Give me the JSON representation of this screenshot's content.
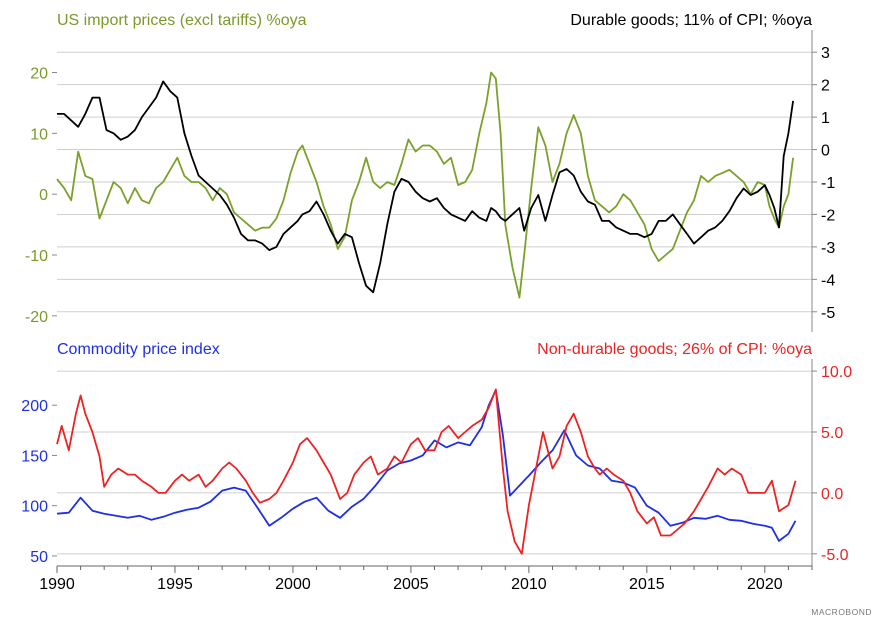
{
  "chart_data": [
    {
      "type": "line",
      "title_left": "US import prices (excl tariffs) %oya",
      "title_right": "Durable goods; 11% of CPI; %oya",
      "left_axis": {
        "ylim": [
          -22,
          26
        ],
        "ticks": [
          20,
          10,
          0,
          -10,
          -20
        ],
        "color": "#7a9a2a"
      },
      "right_axis": {
        "ylim": [
          -5.5,
          3.5
        ],
        "ticks": [
          3,
          2,
          1,
          0,
          -1,
          -2,
          -3,
          -4,
          -5
        ],
        "color": "#000000"
      },
      "grid": true,
      "series": [
        {
          "axis": "left",
          "color": "#7aa12a",
          "x": [
            1990.0,
            1990.3,
            1990.6,
            1990.9,
            1991.2,
            1991.5,
            1991.8,
            1992.1,
            1992.4,
            1992.7,
            1993.0,
            1993.3,
            1993.6,
            1993.9,
            1994.2,
            1994.5,
            1994.8,
            1995.1,
            1995.4,
            1995.7,
            1996.0,
            1996.3,
            1996.6,
            1996.9,
            1997.2,
            1997.5,
            1997.8,
            1998.1,
            1998.4,
            1998.7,
            1999.0,
            1999.3,
            1999.6,
            1999.9,
            2000.2,
            2000.4,
            2000.7,
            2001.0,
            2001.3,
            2001.6,
            2001.9,
            2002.2,
            2002.5,
            2002.8,
            2003.1,
            2003.4,
            2003.7,
            2004.0,
            2004.3,
            2004.6,
            2004.9,
            2005.2,
            2005.5,
            2005.8,
            2006.1,
            2006.4,
            2006.7,
            2007.0,
            2007.3,
            2007.6,
            2007.9,
            2008.2,
            2008.4,
            2008.6,
            2008.8,
            2009.0,
            2009.3,
            2009.6,
            2009.8,
            2010.1,
            2010.4,
            2010.7,
            2011.0,
            2011.3,
            2011.6,
            2011.9,
            2012.2,
            2012.5,
            2012.8,
            2013.1,
            2013.4,
            2013.7,
            2014.0,
            2014.3,
            2014.6,
            2014.9,
            2015.2,
            2015.5,
            2015.8,
            2016.1,
            2016.4,
            2016.7,
            2017.0,
            2017.3,
            2017.6,
            2017.9,
            2018.2,
            2018.5,
            2018.8,
            2019.1,
            2019.4,
            2019.7,
            2020.0,
            2020.2,
            2020.4,
            2020.6,
            2020.8,
            2021.0,
            2021.2
          ],
          "y": [
            2.5,
            1.0,
            -1.0,
            7.0,
            3.0,
            2.5,
            -4.0,
            -1.0,
            2.0,
            1.0,
            -1.5,
            1.0,
            -1.0,
            -1.5,
            1.0,
            2.0,
            4.0,
            6.0,
            3.0,
            2.0,
            2.0,
            1.0,
            -1.0,
            1.0,
            0.0,
            -3.0,
            -4.0,
            -5.0,
            -6.0,
            -5.5,
            -5.5,
            -4.0,
            -1.0,
            3.5,
            7.0,
            8.0,
            5.0,
            2.0,
            -2.0,
            -5.0,
            -9.0,
            -7.0,
            -1.0,
            2.0,
            6.0,
            2.0,
            1.0,
            2.0,
            1.5,
            5.0,
            9.0,
            7.0,
            8.0,
            8.0,
            7.0,
            5.0,
            6.0,
            1.5,
            2.0,
            4.0,
            10.0,
            15.0,
            20.0,
            19.0,
            10.0,
            -5.0,
            -12.0,
            -17.0,
            -10.0,
            1.0,
            11.0,
            8.0,
            2.0,
            5.0,
            10.0,
            13.0,
            10.0,
            3.0,
            -1.0,
            -2.0,
            -3.0,
            -2.0,
            0.0,
            -1.0,
            -3.0,
            -5.0,
            -9.0,
            -11.0,
            -10.0,
            -9.0,
            -6.0,
            -3.0,
            -1.0,
            3.0,
            2.0,
            3.0,
            3.5,
            4.0,
            3.0,
            2.0,
            0.0,
            2.0,
            1.5,
            -2.0,
            -4.0,
            -5.5,
            -2.0,
            0.0,
            6.0
          ]
        },
        {
          "axis": "right",
          "color": "#000000",
          "x": [
            1990.0,
            1990.3,
            1990.6,
            1990.9,
            1991.2,
            1991.5,
            1991.8,
            1992.1,
            1992.4,
            1992.7,
            1993.0,
            1993.3,
            1993.6,
            1993.9,
            1994.2,
            1994.5,
            1994.8,
            1995.1,
            1995.4,
            1995.7,
            1996.0,
            1996.3,
            1996.6,
            1996.9,
            1997.2,
            1997.5,
            1997.8,
            1998.1,
            1998.4,
            1998.7,
            1999.0,
            1999.3,
            1999.6,
            1999.9,
            2000.2,
            2000.4,
            2000.7,
            2001.0,
            2001.3,
            2001.6,
            2001.9,
            2002.2,
            2002.5,
            2002.8,
            2003.1,
            2003.4,
            2003.7,
            2004.0,
            2004.3,
            2004.6,
            2004.9,
            2005.2,
            2005.5,
            2005.8,
            2006.1,
            2006.4,
            2006.7,
            2007.0,
            2007.3,
            2007.6,
            2007.9,
            2008.2,
            2008.4,
            2008.6,
            2008.8,
            2009.0,
            2009.3,
            2009.6,
            2009.8,
            2010.1,
            2010.4,
            2010.7,
            2011.0,
            2011.3,
            2011.6,
            2011.9,
            2012.2,
            2012.5,
            2012.8,
            2013.1,
            2013.4,
            2013.7,
            2014.0,
            2014.3,
            2014.6,
            2014.9,
            2015.2,
            2015.5,
            2015.8,
            2016.1,
            2016.4,
            2016.7,
            2017.0,
            2017.3,
            2017.6,
            2017.9,
            2018.2,
            2018.5,
            2018.8,
            2019.1,
            2019.4,
            2019.7,
            2020.0,
            2020.2,
            2020.4,
            2020.6,
            2020.8,
            2021.0,
            2021.2
          ],
          "y": [
            1.1,
            1.1,
            0.9,
            0.7,
            1.1,
            1.6,
            1.6,
            0.6,
            0.5,
            0.3,
            0.4,
            0.6,
            1.0,
            1.3,
            1.6,
            2.1,
            1.8,
            1.6,
            0.5,
            -0.2,
            -0.8,
            -1.0,
            -1.2,
            -1.4,
            -1.7,
            -2.1,
            -2.6,
            -2.8,
            -2.8,
            -2.9,
            -3.1,
            -3.0,
            -2.6,
            -2.4,
            -2.2,
            -2.0,
            -1.9,
            -1.6,
            -2.0,
            -2.5,
            -2.9,
            -2.6,
            -2.7,
            -3.5,
            -4.2,
            -4.4,
            -3.5,
            -2.3,
            -1.3,
            -0.9,
            -1.0,
            -1.3,
            -1.5,
            -1.6,
            -1.5,
            -1.8,
            -2.0,
            -2.1,
            -2.2,
            -1.9,
            -2.1,
            -2.2,
            -1.8,
            -1.9,
            -2.1,
            -2.2,
            -2.0,
            -1.8,
            -2.5,
            -1.8,
            -1.4,
            -2.2,
            -1.4,
            -0.7,
            -0.6,
            -0.8,
            -1.3,
            -1.6,
            -1.7,
            -2.2,
            -2.2,
            -2.4,
            -2.5,
            -2.6,
            -2.6,
            -2.7,
            -2.6,
            -2.2,
            -2.2,
            -2.0,
            -2.3,
            -2.6,
            -2.9,
            -2.7,
            -2.5,
            -2.4,
            -2.2,
            -1.9,
            -1.5,
            -1.2,
            -1.4,
            -1.3,
            -1.1,
            -1.4,
            -1.8,
            -2.4,
            -0.2,
            0.5,
            1.5
          ]
        }
      ]
    },
    {
      "type": "line",
      "title_left": "Commodity price index",
      "title_right": "Non-durable goods; 26% of CPI: %oya",
      "left_axis": {
        "ylim": [
          40,
          240
        ],
        "ticks": [
          200,
          150,
          100,
          50
        ],
        "color": "#1e2fe6"
      },
      "right_axis": {
        "ylim": [
          -6,
          10.5
        ],
        "ticks": [
          10.0,
          5.0,
          0.0,
          -5.0
        ],
        "tick_labels": [
          "10.0",
          "5.0",
          "0.0",
          "-5.0"
        ],
        "color": "#ee2222"
      },
      "grid": true,
      "x_axis": {
        "range": [
          1990,
          2022
        ],
        "ticks": [
          1990,
          1995,
          2000,
          2005,
          2010,
          2015,
          2020
        ],
        "tick_labels": [
          "1990",
          "1995",
          "2000",
          "2005",
          "2010",
          "2015",
          "2020"
        ]
      },
      "series": [
        {
          "axis": "left",
          "color": "#1e2fe6",
          "x": [
            1990.0,
            1990.5,
            1991.0,
            1991.5,
            1992.0,
            1992.5,
            1993.0,
            1993.5,
            1994.0,
            1994.5,
            1995.0,
            1995.5,
            1996.0,
            1996.5,
            1997.0,
            1997.5,
            1998.0,
            1998.5,
            1999.0,
            1999.5,
            2000.0,
            2000.5,
            2001.0,
            2001.5,
            2002.0,
            2002.5,
            2003.0,
            2003.5,
            2004.0,
            2004.5,
            2005.0,
            2005.5,
            2006.0,
            2006.5,
            2007.0,
            2007.5,
            2008.0,
            2008.3,
            2008.6,
            2008.9,
            2009.2,
            2009.6,
            2010.0,
            2010.5,
            2011.0,
            2011.5,
            2012.0,
            2012.5,
            2013.0,
            2013.5,
            2014.0,
            2014.5,
            2015.0,
            2015.5,
            2016.0,
            2016.5,
            2017.0,
            2017.5,
            2018.0,
            2018.5,
            2019.0,
            2019.5,
            2020.0,
            2020.3,
            2020.6,
            2021.0,
            2021.3
          ],
          "y": [
            92,
            93,
            108,
            95,
            92,
            90,
            88,
            90,
            86,
            89,
            93,
            96,
            98,
            104,
            115,
            118,
            115,
            98,
            80,
            88,
            97,
            104,
            108,
            95,
            88,
            99,
            107,
            120,
            135,
            142,
            145,
            150,
            165,
            158,
            163,
            160,
            178,
            200,
            215,
            170,
            110,
            120,
            130,
            143,
            155,
            175,
            150,
            140,
            137,
            125,
            123,
            118,
            100,
            93,
            80,
            83,
            88,
            87,
            90,
            86,
            85,
            82,
            80,
            78,
            65,
            72,
            85
          ]
        },
        {
          "axis": "right",
          "color": "#ee2222",
          "x": [
            1990.0,
            1990.2,
            1990.5,
            1990.8,
            1991.0,
            1991.2,
            1991.5,
            1991.8,
            1992.0,
            1992.3,
            1992.6,
            1993.0,
            1993.3,
            1993.6,
            1994.0,
            1994.3,
            1994.6,
            1995.0,
            1995.3,
            1995.6,
            1996.0,
            1996.3,
            1996.6,
            1997.0,
            1997.3,
            1997.6,
            1998.0,
            1998.3,
            1998.6,
            1999.0,
            1999.3,
            1999.6,
            2000.0,
            2000.3,
            2000.6,
            2001.0,
            2001.3,
            2001.6,
            2002.0,
            2002.3,
            2002.6,
            2003.0,
            2003.3,
            2003.6,
            2004.0,
            2004.3,
            2004.6,
            2005.0,
            2005.3,
            2005.6,
            2006.0,
            2006.3,
            2006.6,
            2007.0,
            2007.3,
            2007.6,
            2008.0,
            2008.3,
            2008.6,
            2008.9,
            2009.1,
            2009.4,
            2009.7,
            2010.0,
            2010.3,
            2010.6,
            2011.0,
            2011.3,
            2011.6,
            2011.9,
            2012.2,
            2012.5,
            2012.8,
            2013.0,
            2013.3,
            2013.6,
            2014.0,
            2014.3,
            2014.6,
            2015.0,
            2015.3,
            2015.6,
            2016.0,
            2016.3,
            2016.6,
            2017.0,
            2017.3,
            2017.6,
            2018.0,
            2018.3,
            2018.6,
            2019.0,
            2019.3,
            2019.6,
            2020.0,
            2020.3,
            2020.6,
            2021.0,
            2021.3
          ],
          "y": [
            4.0,
            5.5,
            3.5,
            6.5,
            8.0,
            6.5,
            5.0,
            3.0,
            0.5,
            1.5,
            2.0,
            1.5,
            1.5,
            1.0,
            0.5,
            0.0,
            0.0,
            1.0,
            1.5,
            1.0,
            1.5,
            0.5,
            1.0,
            2.0,
            2.5,
            2.0,
            1.0,
            0.0,
            -0.8,
            -0.5,
            0.0,
            1.0,
            2.5,
            4.0,
            4.5,
            3.5,
            2.5,
            1.5,
            -0.5,
            0.0,
            1.5,
            2.5,
            3.0,
            1.5,
            2.0,
            3.0,
            2.5,
            4.0,
            4.5,
            3.5,
            3.5,
            5.0,
            5.5,
            4.5,
            5.0,
            5.5,
            6.0,
            7.0,
            8.5,
            2.0,
            -1.5,
            -4.0,
            -5.0,
            -1.0,
            2.0,
            5.0,
            2.0,
            3.0,
            5.5,
            6.5,
            5.0,
            3.0,
            2.0,
            1.5,
            2.0,
            1.5,
            1.0,
            0.0,
            -1.5,
            -2.5,
            -2.0,
            -3.5,
            -3.5,
            -3.0,
            -2.5,
            -1.5,
            -0.5,
            0.5,
            2.0,
            1.5,
            2.0,
            1.5,
            0.0,
            0.0,
            0.0,
            1.0,
            -1.5,
            -1.0,
            1.0
          ]
        }
      ]
    }
  ],
  "footer": {
    "source_logo": "MACROBOND"
  }
}
